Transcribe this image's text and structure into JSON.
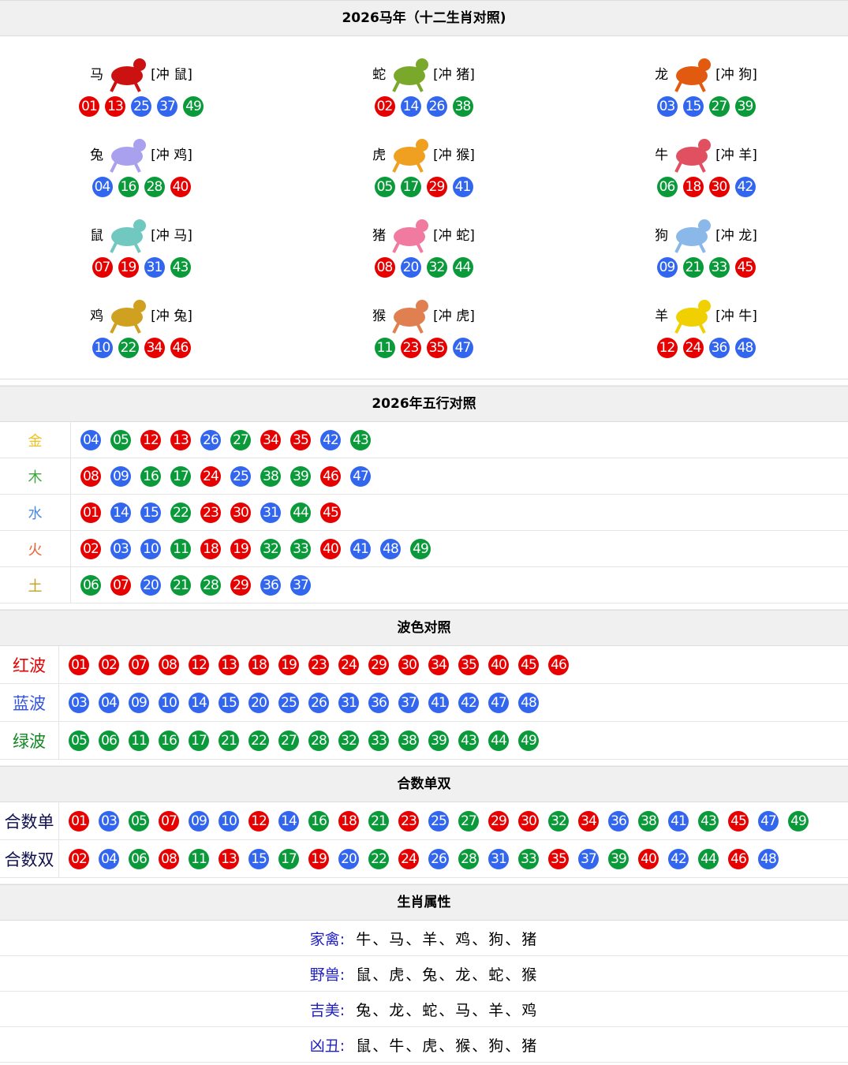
{
  "colors": {
    "red": "#e60000",
    "blue": "#3366ee",
    "green": "#0a9a3a"
  },
  "zodiac": {
    "title": "2026马年（十二生肖对照)",
    "items": [
      {
        "name": "马",
        "clash": "[冲 鼠]",
        "numbers": [
          "01",
          "13",
          "25",
          "37",
          "49"
        ],
        "icon": "horse-icon",
        "tint": "#cc1111"
      },
      {
        "name": "蛇",
        "clash": "[冲 猪]",
        "numbers": [
          "02",
          "14",
          "26",
          "38"
        ],
        "icon": "snake-icon",
        "tint": "#7aa82a"
      },
      {
        "name": "龙",
        "clash": "[冲 狗]",
        "numbers": [
          "03",
          "15",
          "27",
          "39"
        ],
        "icon": "dragon-icon",
        "tint": "#e25a10"
      },
      {
        "name": "兔",
        "clash": "[冲 鸡]",
        "numbers": [
          "04",
          "16",
          "28",
          "40"
        ],
        "icon": "rabbit-icon",
        "tint": "#a9a0ee"
      },
      {
        "name": "虎",
        "clash": "[冲 猴]",
        "numbers": [
          "05",
          "17",
          "29",
          "41"
        ],
        "icon": "tiger-icon",
        "tint": "#f0a020"
      },
      {
        "name": "牛",
        "clash": "[冲 羊]",
        "numbers": [
          "06",
          "18",
          "30",
          "42"
        ],
        "icon": "ox-icon",
        "tint": "#e05060"
      },
      {
        "name": "鼠",
        "clash": "[冲 马]",
        "numbers": [
          "07",
          "19",
          "31",
          "43"
        ],
        "icon": "rat-icon",
        "tint": "#70c8c0"
      },
      {
        "name": "猪",
        "clash": "[冲 蛇]",
        "numbers": [
          "08",
          "20",
          "32",
          "44"
        ],
        "icon": "pig-icon",
        "tint": "#f07aa0"
      },
      {
        "name": "狗",
        "clash": "[冲 龙]",
        "numbers": [
          "09",
          "21",
          "33",
          "45"
        ],
        "icon": "dog-icon",
        "tint": "#8ab8e8"
      },
      {
        "name": "鸡",
        "clash": "[冲 兔]",
        "numbers": [
          "10",
          "22",
          "34",
          "46"
        ],
        "icon": "rooster-icon",
        "tint": "#d0a020"
      },
      {
        "name": "猴",
        "clash": "[冲 虎]",
        "numbers": [
          "11",
          "23",
          "35",
          "47"
        ],
        "icon": "monkey-icon",
        "tint": "#e08050"
      },
      {
        "name": "羊",
        "clash": "[冲 牛]",
        "numbers": [
          "12",
          "24",
          "36",
          "48"
        ],
        "icon": "goat-icon",
        "tint": "#f0d000"
      }
    ]
  },
  "elements": {
    "title": "2026年五行对照",
    "rows": [
      {
        "label": "金",
        "color": "#f0c020",
        "numbers": [
          "04",
          "05",
          "12",
          "13",
          "26",
          "27",
          "34",
          "35",
          "42",
          "43"
        ]
      },
      {
        "label": "木",
        "color": "#3aa83a",
        "numbers": [
          "08",
          "09",
          "16",
          "17",
          "24",
          "25",
          "38",
          "39",
          "46",
          "47"
        ]
      },
      {
        "label": "水",
        "color": "#4a8ae0",
        "numbers": [
          "01",
          "14",
          "15",
          "22",
          "23",
          "30",
          "31",
          "44",
          "45"
        ]
      },
      {
        "label": "火",
        "color": "#e86030",
        "numbers": [
          "02",
          "03",
          "10",
          "11",
          "18",
          "19",
          "32",
          "33",
          "40",
          "41",
          "48",
          "49"
        ]
      },
      {
        "label": "土",
        "color": "#c8a020",
        "numbers": [
          "06",
          "07",
          "20",
          "21",
          "28",
          "29",
          "36",
          "37"
        ]
      }
    ]
  },
  "waves": {
    "title": "波色对照",
    "rows": [
      {
        "label": "红波",
        "color": "#e60000",
        "numbers": [
          "01",
          "02",
          "07",
          "08",
          "12",
          "13",
          "18",
          "19",
          "23",
          "24",
          "29",
          "30",
          "34",
          "35",
          "40",
          "45",
          "46"
        ]
      },
      {
        "label": "蓝波",
        "color": "#3355dd",
        "numbers": [
          "03",
          "04",
          "09",
          "10",
          "14",
          "15",
          "20",
          "25",
          "26",
          "31",
          "36",
          "37",
          "41",
          "42",
          "47",
          "48"
        ]
      },
      {
        "label": "绿波",
        "color": "#118822",
        "numbers": [
          "05",
          "06",
          "11",
          "16",
          "17",
          "21",
          "22",
          "27",
          "28",
          "32",
          "33",
          "38",
          "39",
          "43",
          "44",
          "49"
        ]
      }
    ]
  },
  "sums": {
    "title": "合数单双",
    "rows": [
      {
        "label": "合数单",
        "color": "#101050",
        "numbers": [
          "01",
          "03",
          "05",
          "07",
          "09",
          "10",
          "12",
          "14",
          "16",
          "18",
          "21",
          "23",
          "25",
          "27",
          "29",
          "30",
          "32",
          "34",
          "36",
          "38",
          "41",
          "43",
          "45",
          "47",
          "49"
        ]
      },
      {
        "label": "合数双",
        "color": "#101050",
        "numbers": [
          "02",
          "04",
          "06",
          "08",
          "11",
          "13",
          "15",
          "17",
          "19",
          "20",
          "22",
          "24",
          "26",
          "28",
          "31",
          "33",
          "35",
          "37",
          "39",
          "40",
          "42",
          "44",
          "46",
          "48"
        ]
      }
    ]
  },
  "attributes": {
    "title": "生肖属性",
    "rows": [
      {
        "key": "家禽:",
        "value": "牛、马、羊、鸡、狗、猪"
      },
      {
        "key": "野兽:",
        "value": "鼠、虎、兔、龙、蛇、猴"
      },
      {
        "key": "吉美:",
        "value": "兔、龙、蛇、马、羊、鸡"
      },
      {
        "key": "凶丑:",
        "value": "鼠、牛、虎、猴、狗、猪"
      }
    ]
  }
}
